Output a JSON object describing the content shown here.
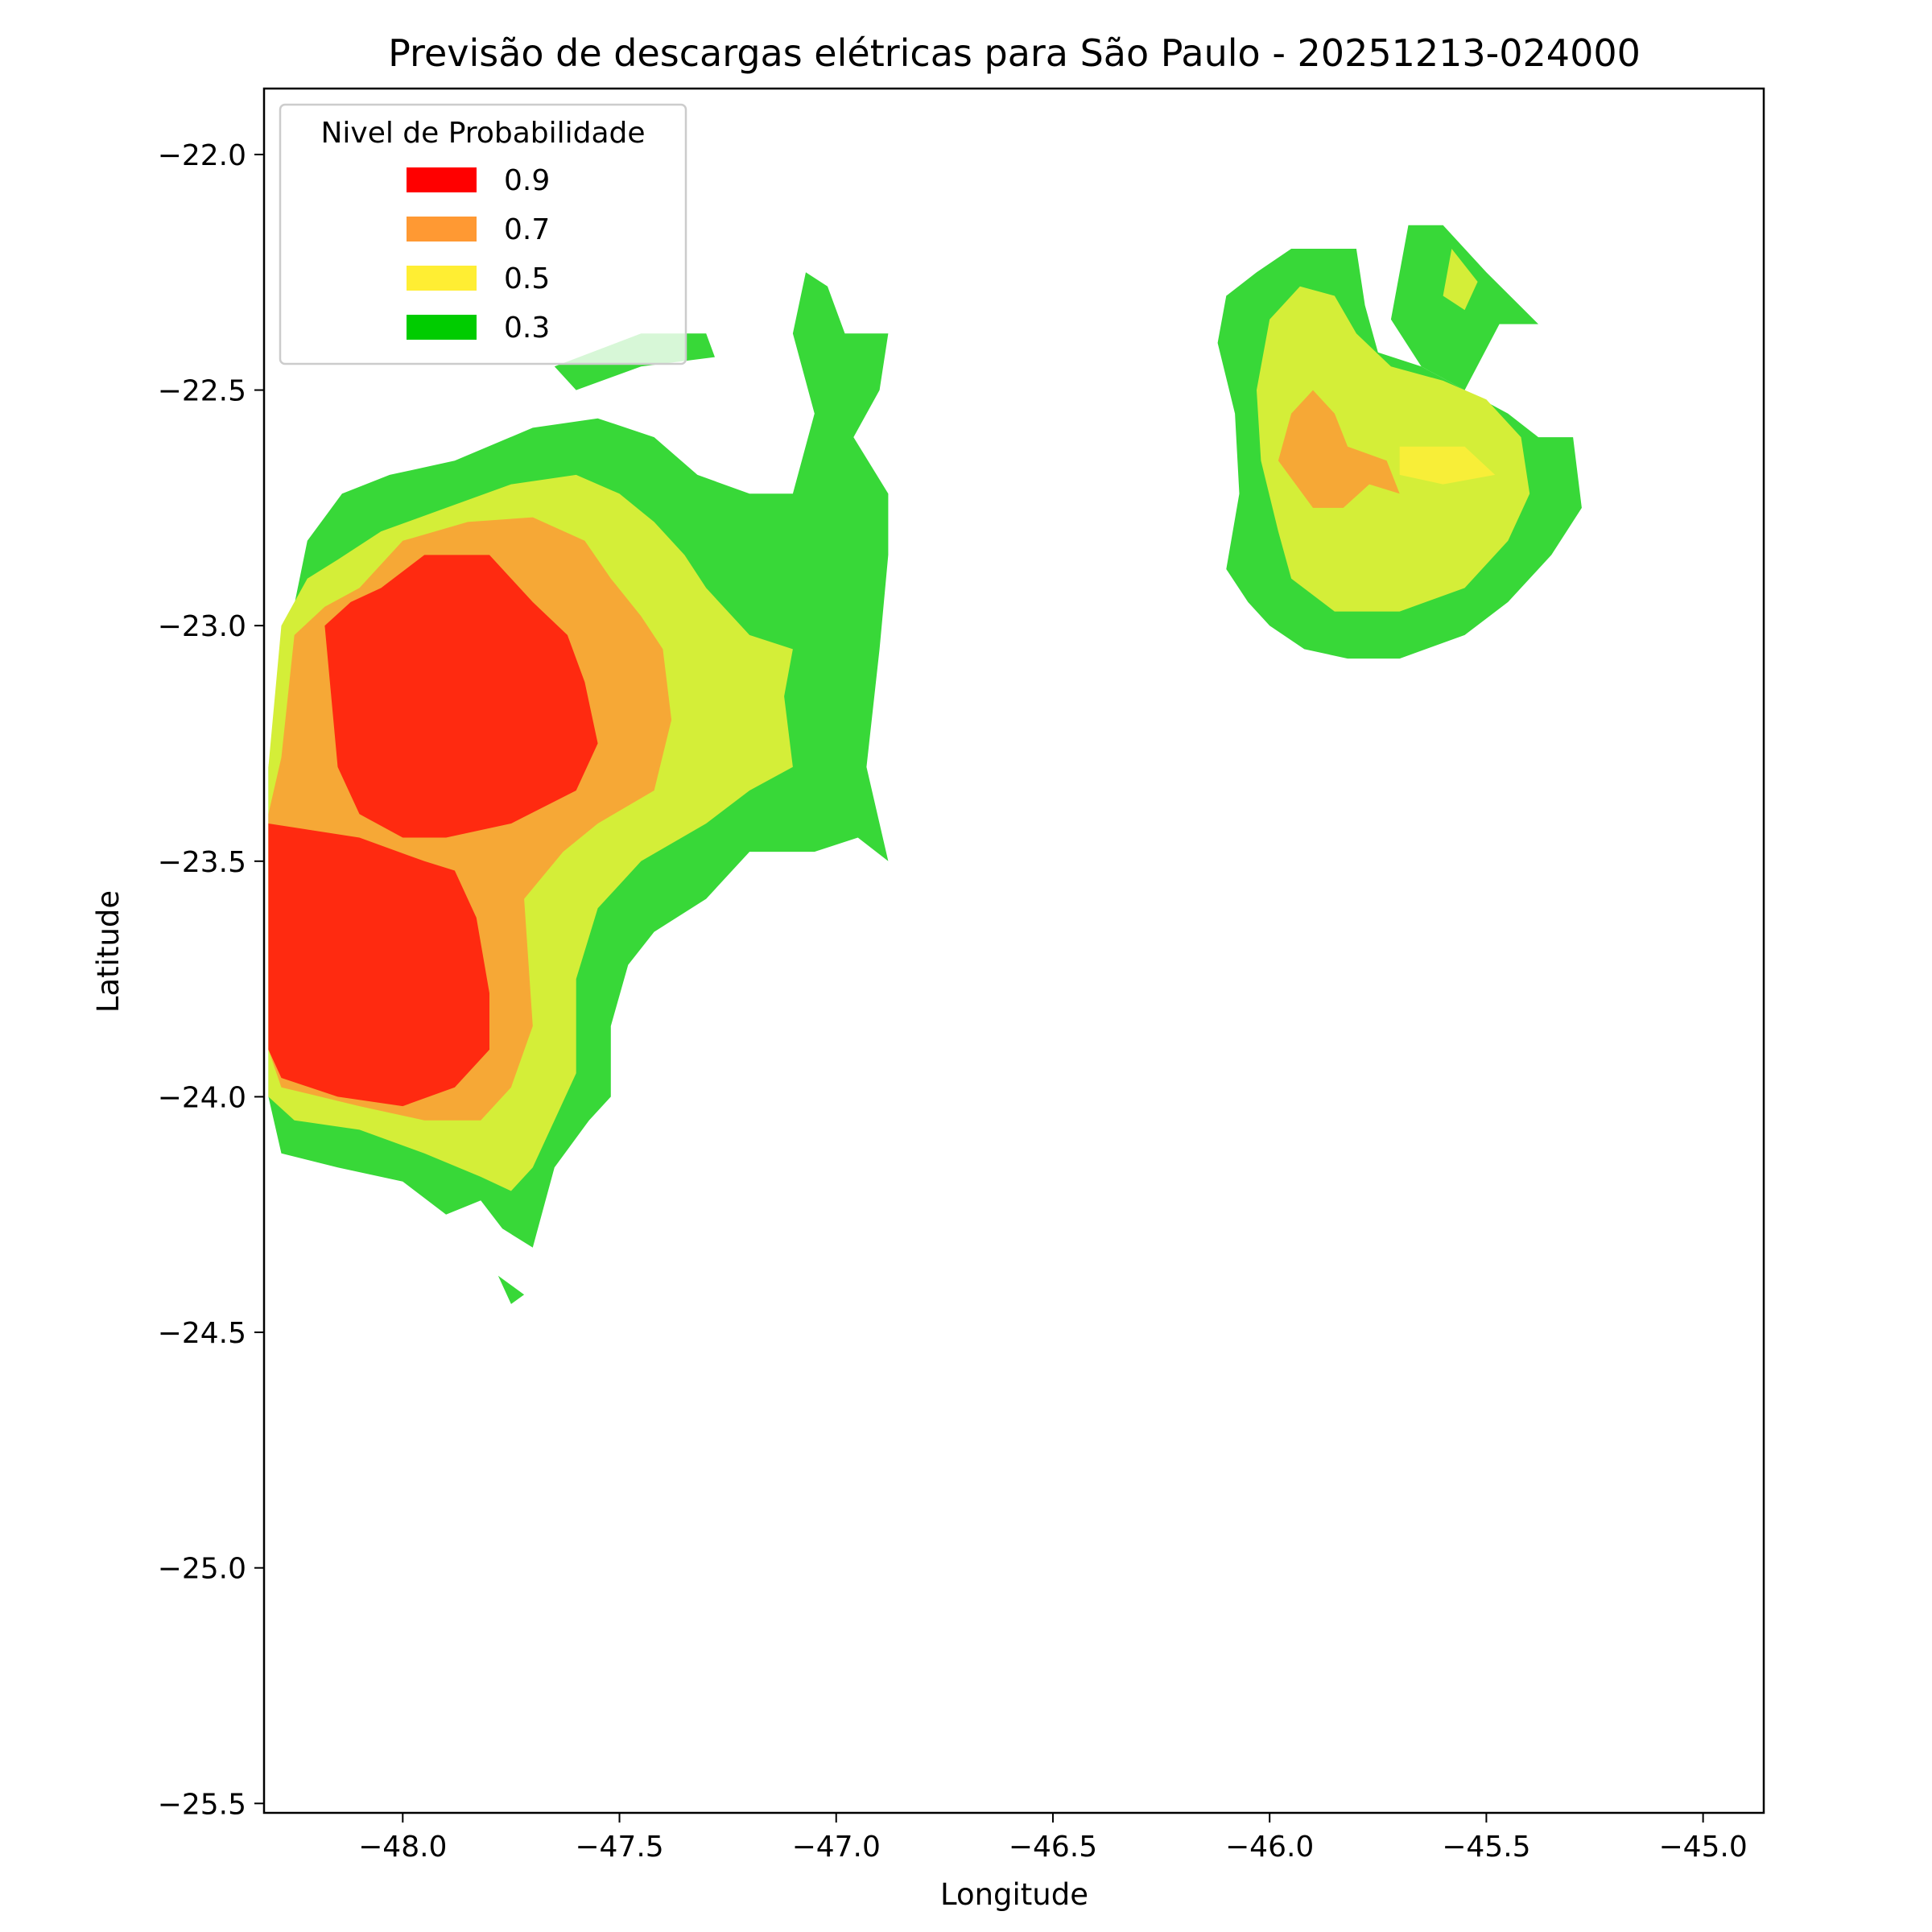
{
  "chart_data": {
    "type": "contour",
    "title": "Previsão de descargas elétricas para São Paulo - 20251213-024000",
    "xlabel": "Longitude",
    "ylabel": "Latitude",
    "xlim": [
      -48.32,
      -44.86
    ],
    "ylim": [
      -25.52,
      -21.86
    ],
    "xticks": [
      -48.0,
      -47.5,
      -47.0,
      -46.5,
      -46.0,
      -45.5,
      -45.0
    ],
    "xtick_labels": [
      "−48.0",
      "−47.5",
      "−47.0",
      "−46.5",
      "−46.0",
      "−45.5",
      "−45.0"
    ],
    "yticks": [
      -22.0,
      -22.5,
      -23.0,
      -23.5,
      -24.0,
      -24.5,
      -25.0,
      -25.5
    ],
    "ytick_labels": [
      "−22.0",
      "−22.5",
      "−23.0",
      "−23.5",
      "−24.0",
      "−24.5",
      "−25.0",
      "−25.5"
    ],
    "grid": false,
    "legend": {
      "title": "Nivel de Probabilidade",
      "placement": "upper-left",
      "entries": [
        {
          "label": "0.9",
          "color": "#ff0000"
        },
        {
          "label": "0.7",
          "color": "#ff9933"
        },
        {
          "label": "0.5",
          "color": "#ffee33"
        },
        {
          "label": "0.3",
          "color": "#00cc00"
        }
      ]
    },
    "level_fill_colors": {
      "0.3": "#38d838",
      "0.5": "#d4ee38",
      "0.5_core": "#f8ee38",
      "0.7": "#f6a836",
      "0.9": "#ff2a10"
    },
    "regions": [
      {
        "level": "0.3",
        "coords": [
          [
            -48.31,
            -23.3
          ],
          [
            -48.26,
            -23.0
          ],
          [
            -48.22,
            -22.82
          ],
          [
            -48.14,
            -22.72
          ],
          [
            -48.03,
            -22.68
          ],
          [
            -47.88,
            -22.65
          ],
          [
            -47.7,
            -22.58
          ],
          [
            -47.55,
            -22.56
          ],
          [
            -47.42,
            -22.6
          ],
          [
            -47.32,
            -22.68
          ],
          [
            -47.2,
            -22.72
          ],
          [
            -47.1,
            -22.72
          ],
          [
            -47.05,
            -22.55
          ],
          [
            -47.1,
            -22.38
          ],
          [
            -47.07,
            -22.25
          ],
          [
            -47.02,
            -22.28
          ],
          [
            -46.98,
            -22.38
          ],
          [
            -46.88,
            -22.38
          ],
          [
            -46.9,
            -22.5
          ],
          [
            -46.96,
            -22.6
          ],
          [
            -46.88,
            -22.72
          ],
          [
            -46.88,
            -22.85
          ],
          [
            -46.9,
            -23.05
          ],
          [
            -46.93,
            -23.3
          ],
          [
            -46.88,
            -23.5
          ],
          [
            -46.95,
            -23.45
          ],
          [
            -47.05,
            -23.48
          ],
          [
            -47.2,
            -23.48
          ],
          [
            -47.3,
            -23.58
          ],
          [
            -47.42,
            -23.65
          ],
          [
            -47.48,
            -23.72
          ],
          [
            -47.52,
            -23.85
          ],
          [
            -47.52,
            -24.0
          ],
          [
            -47.57,
            -24.05
          ],
          [
            -47.65,
            -24.15
          ],
          [
            -47.7,
            -24.32
          ],
          [
            -47.77,
            -24.28
          ],
          [
            -47.82,
            -24.22
          ],
          [
            -47.9,
            -24.25
          ],
          [
            -48.0,
            -24.18
          ],
          [
            -48.15,
            -24.15
          ],
          [
            -48.28,
            -24.12
          ],
          [
            -48.31,
            -24.0
          ],
          [
            -48.31,
            -23.3
          ]
        ]
      },
      {
        "level": "0.3",
        "coords": [
          [
            -46.1,
            -22.88
          ],
          [
            -46.07,
            -22.72
          ],
          [
            -46.08,
            -22.55
          ],
          [
            -46.12,
            -22.4
          ],
          [
            -46.1,
            -22.3
          ],
          [
            -46.03,
            -22.25
          ],
          [
            -45.95,
            -22.2
          ],
          [
            -45.8,
            -22.2
          ],
          [
            -45.78,
            -22.32
          ],
          [
            -45.75,
            -22.42
          ],
          [
            -45.65,
            -22.45
          ],
          [
            -45.55,
            -22.5
          ],
          [
            -45.45,
            -22.55
          ],
          [
            -45.38,
            -22.6
          ],
          [
            -45.3,
            -22.6
          ],
          [
            -45.28,
            -22.75
          ],
          [
            -45.35,
            -22.85
          ],
          [
            -45.45,
            -22.95
          ],
          [
            -45.55,
            -23.02
          ],
          [
            -45.7,
            -23.07
          ],
          [
            -45.82,
            -23.07
          ],
          [
            -45.92,
            -23.05
          ],
          [
            -46.0,
            -23.0
          ],
          [
            -46.05,
            -22.95
          ],
          [
            -46.1,
            -22.88
          ]
        ]
      },
      {
        "level": "0.3",
        "coords": [
          [
            -45.72,
            -22.35
          ],
          [
            -45.68,
            -22.15
          ],
          [
            -45.6,
            -22.15
          ],
          [
            -45.5,
            -22.25
          ],
          [
            -45.38,
            -22.36
          ],
          [
            -45.47,
            -22.36
          ],
          [
            -45.55,
            -22.5
          ],
          [
            -45.65,
            -22.45
          ],
          [
            -45.72,
            -22.35
          ]
        ]
      },
      {
        "level": "0.3",
        "coords": [
          [
            -47.78,
            -24.38
          ],
          [
            -47.72,
            -24.42
          ],
          [
            -47.75,
            -24.44
          ],
          [
            -47.78,
            -24.38
          ]
        ]
      },
      {
        "level": "0.3",
        "coords": [
          [
            -47.65,
            -22.45
          ],
          [
            -47.45,
            -22.38
          ],
          [
            -47.3,
            -22.38
          ],
          [
            -47.28,
            -22.43
          ],
          [
            -47.45,
            -22.45
          ],
          [
            -47.6,
            -22.5
          ],
          [
            -47.65,
            -22.45
          ]
        ]
      },
      {
        "level": "0.5",
        "coords": [
          [
            -48.31,
            -23.3
          ],
          [
            -48.28,
            -23.0
          ],
          [
            -48.22,
            -22.9
          ],
          [
            -48.15,
            -22.86
          ],
          [
            -48.05,
            -22.8
          ],
          [
            -47.9,
            -22.75
          ],
          [
            -47.75,
            -22.7
          ],
          [
            -47.6,
            -22.68
          ],
          [
            -47.5,
            -22.72
          ],
          [
            -47.42,
            -22.78
          ],
          [
            -47.35,
            -22.85
          ],
          [
            -47.3,
            -22.92
          ],
          [
            -47.2,
            -23.02
          ],
          [
            -47.1,
            -23.05
          ],
          [
            -47.12,
            -23.15
          ],
          [
            -47.1,
            -23.3
          ],
          [
            -47.2,
            -23.35
          ],
          [
            -47.3,
            -23.42
          ],
          [
            -47.45,
            -23.5
          ],
          [
            -47.55,
            -23.6
          ],
          [
            -47.6,
            -23.75
          ],
          [
            -47.6,
            -23.95
          ],
          [
            -47.65,
            -24.05
          ],
          [
            -47.7,
            -24.15
          ],
          [
            -47.75,
            -24.2
          ],
          [
            -47.82,
            -24.17
          ],
          [
            -47.95,
            -24.12
          ],
          [
            -48.1,
            -24.07
          ],
          [
            -48.25,
            -24.05
          ],
          [
            -48.31,
            -24.0
          ],
          [
            -48.31,
            -23.3
          ]
        ]
      },
      {
        "level": "0.5",
        "coords": [
          [
            -45.98,
            -22.8
          ],
          [
            -46.02,
            -22.65
          ],
          [
            -46.03,
            -22.5
          ],
          [
            -46.0,
            -22.35
          ],
          [
            -45.93,
            -22.28
          ],
          [
            -45.85,
            -22.3
          ],
          [
            -45.8,
            -22.38
          ],
          [
            -45.72,
            -22.45
          ],
          [
            -45.6,
            -22.48
          ],
          [
            -45.5,
            -22.52
          ],
          [
            -45.42,
            -22.6
          ],
          [
            -45.4,
            -22.72
          ],
          [
            -45.45,
            -22.82
          ],
          [
            -45.55,
            -22.92
          ],
          [
            -45.7,
            -22.97
          ],
          [
            -45.85,
            -22.97
          ],
          [
            -45.95,
            -22.9
          ],
          [
            -45.98,
            -22.8
          ]
        ]
      },
      {
        "level": "0.5",
        "coords": [
          [
            -45.58,
            -22.2
          ],
          [
            -45.52,
            -22.27
          ],
          [
            -45.55,
            -22.33
          ],
          [
            -45.6,
            -22.3
          ],
          [
            -45.58,
            -22.2
          ]
        ]
      },
      {
        "level": "0.7",
        "coords": [
          [
            -48.31,
            -23.4
          ],
          [
            -48.28,
            -23.28
          ],
          [
            -48.25,
            -23.02
          ],
          [
            -48.18,
            -22.96
          ],
          [
            -48.1,
            -22.92
          ],
          [
            -48.0,
            -22.82
          ],
          [
            -47.85,
            -22.78
          ],
          [
            -47.7,
            -22.77
          ],
          [
            -47.58,
            -22.82
          ],
          [
            -47.52,
            -22.9
          ],
          [
            -47.45,
            -22.98
          ],
          [
            -47.4,
            -23.05
          ],
          [
            -47.38,
            -23.2
          ],
          [
            -47.42,
            -23.35
          ],
          [
            -47.55,
            -23.42
          ],
          [
            -47.63,
            -23.48
          ],
          [
            -47.72,
            -23.58
          ],
          [
            -47.7,
            -23.85
          ],
          [
            -47.75,
            -23.98
          ],
          [
            -47.82,
            -24.05
          ],
          [
            -47.95,
            -24.05
          ],
          [
            -48.1,
            -24.02
          ],
          [
            -48.28,
            -23.98
          ],
          [
            -48.31,
            -23.9
          ],
          [
            -48.31,
            -23.4
          ]
        ]
      },
      {
        "level": "0.7",
        "coords": [
          [
            -45.95,
            -22.55
          ],
          [
            -45.98,
            -22.65
          ],
          [
            -45.9,
            -22.75
          ],
          [
            -45.83,
            -22.75
          ],
          [
            -45.77,
            -22.7
          ],
          [
            -45.7,
            -22.72
          ],
          [
            -45.73,
            -22.65
          ],
          [
            -45.82,
            -22.62
          ],
          [
            -45.85,
            -22.55
          ],
          [
            -45.9,
            -22.5
          ],
          [
            -45.95,
            -22.55
          ]
        ]
      },
      {
        "level": "0.5_core",
        "coords": [
          [
            -45.7,
            -22.62
          ],
          [
            -45.55,
            -22.62
          ],
          [
            -45.48,
            -22.68
          ],
          [
            -45.6,
            -22.7
          ],
          [
            -45.7,
            -22.68
          ],
          [
            -45.7,
            -22.62
          ]
        ]
      },
      {
        "level": "0.9",
        "coords": [
          [
            -48.18,
            -23.0
          ],
          [
            -48.15,
            -23.3
          ],
          [
            -48.1,
            -23.4
          ],
          [
            -48.0,
            -23.45
          ],
          [
            -47.9,
            -23.45
          ],
          [
            -47.75,
            -23.42
          ],
          [
            -47.6,
            -23.35
          ],
          [
            -47.55,
            -23.25
          ],
          [
            -47.58,
            -23.12
          ],
          [
            -47.62,
            -23.02
          ],
          [
            -47.7,
            -22.95
          ],
          [
            -47.8,
            -22.85
          ],
          [
            -47.95,
            -22.85
          ],
          [
            -48.05,
            -22.92
          ],
          [
            -48.12,
            -22.95
          ],
          [
            -48.18,
            -23.0
          ]
        ]
      },
      {
        "level": "0.9",
        "coords": [
          [
            -48.31,
            -23.42
          ],
          [
            -48.1,
            -23.45
          ],
          [
            -47.95,
            -23.5
          ],
          [
            -47.88,
            -23.52
          ],
          [
            -47.83,
            -23.62
          ],
          [
            -47.8,
            -23.78
          ],
          [
            -47.8,
            -23.9
          ],
          [
            -47.88,
            -23.98
          ],
          [
            -48.0,
            -24.02
          ],
          [
            -48.15,
            -24.0
          ],
          [
            -48.28,
            -23.96
          ],
          [
            -48.31,
            -23.9
          ],
          [
            -48.31,
            -23.42
          ]
        ]
      }
    ]
  }
}
